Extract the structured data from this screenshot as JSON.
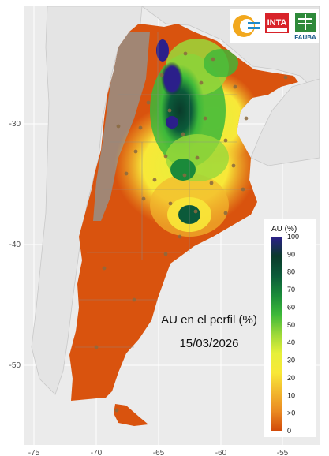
{
  "map": {
    "annotation_title": "AU en el perfil (%)",
    "annotation_date": "15/03/2026",
    "x_ticks": [
      "-75",
      "-70",
      "-65",
      "-60",
      "-55"
    ],
    "y_ticks": [
      "-30",
      "-40",
      "-50"
    ],
    "legend": {
      "title": "AU (%)",
      "labels": [
        "100",
        "90",
        "80",
        "70",
        "60",
        "50",
        "40",
        "30",
        "20",
        "10",
        ">0",
        "0"
      ],
      "colors": [
        "#2b1f8a",
        "#0a3a2a",
        "#0b5a3a",
        "#1a8a3a",
        "#3cb83a",
        "#9ad83a",
        "#e6f03a",
        "#f8e838",
        "#f2b82e",
        "#ea8a22",
        "#dc5a12",
        "#d24a0a"
      ]
    },
    "logos": {
      "inta": "INTA",
      "fauba": "FAUBA"
    }
  }
}
